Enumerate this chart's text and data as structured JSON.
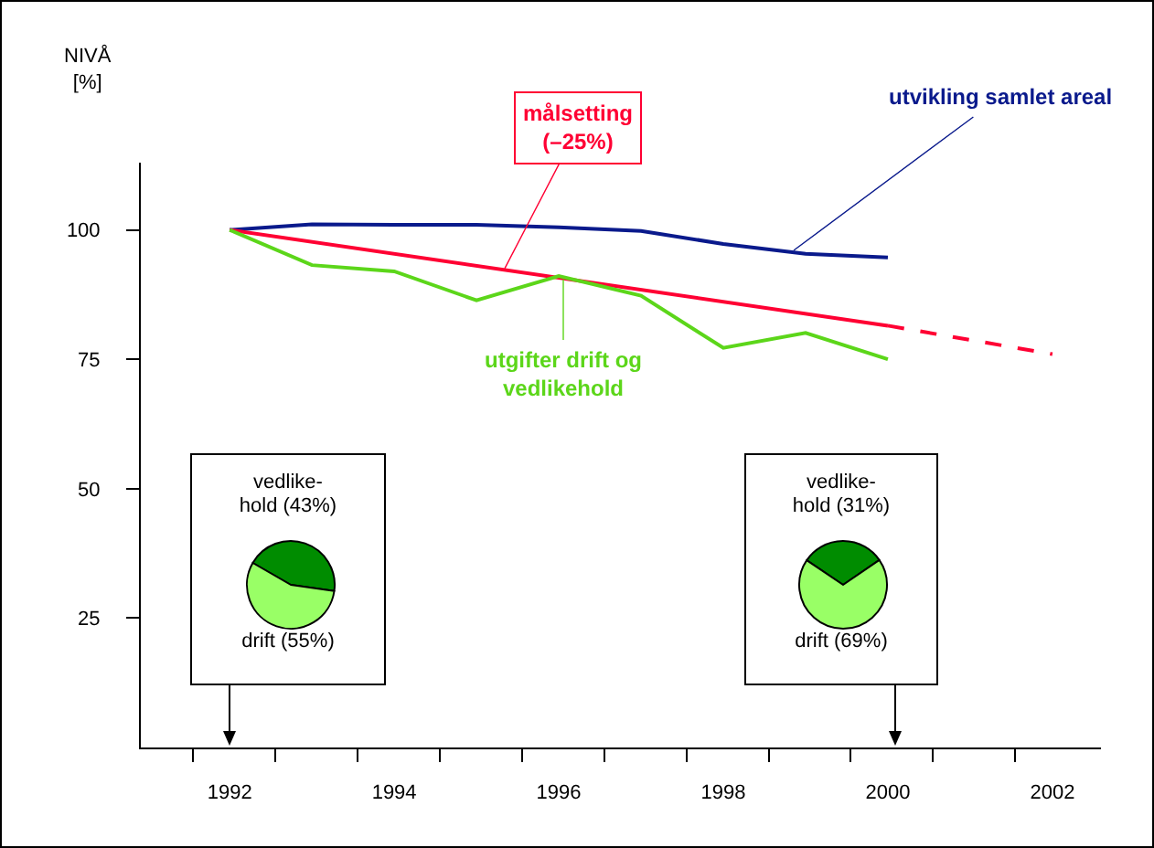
{
  "chart_data": [
    {
      "type": "line",
      "ylabel": "NIVÅ\n[%]",
      "x": [
        1992,
        1993,
        1994,
        1995,
        1996,
        1997,
        1998,
        1999,
        2000
      ],
      "xlim": [
        1990.92,
        2002.59
      ],
      "xticks": [
        {
          "value": 1991.55,
          "label": null
        },
        {
          "value": 1992.55,
          "label": null
        },
        {
          "value": 1993.55,
          "label": null
        },
        {
          "value": 1994.55,
          "label": null
        },
        {
          "value": 1995.55,
          "label": null
        },
        {
          "value": 1996.55,
          "label": null
        },
        {
          "value": 1997.55,
          "label": null
        },
        {
          "value": 1998.55,
          "label": null
        },
        {
          "value": 1999.55,
          "label": null
        },
        {
          "value": 2000.55,
          "label": null
        },
        {
          "value": 2001.55,
          "label": null
        },
        1992,
        1994,
        1996,
        1998,
        2000,
        2002
      ],
      "ylim": [
        0,
        113
      ],
      "yticks": [
        25,
        50,
        75,
        100
      ],
      "grid": false,
      "legend": false,
      "marker": "none",
      "series": [
        {
          "name": "utvikling samlet areal",
          "color": "#0a1a8c",
          "values": [
            100,
            101.1,
            101,
            101,
            100.5,
            99.8,
            97.3,
            95.4,
            94.7
          ]
        },
        {
          "name": "målsetting\n(–25%)",
          "color": "#ff0033",
          "x": [
            1992,
            2000
          ],
          "values": [
            100,
            81.5
          ]
        },
        {
          "color": "#ff0033",
          "x": [
            2000,
            2002
          ],
          "values": [
            81.5,
            76
          ],
          "line_style": "dashed"
        },
        {
          "name": "utgifter drift og\nvedlikehold",
          "color": "#5cd61a",
          "values": [
            100,
            93.2,
            92,
            86.4,
            91.1,
            87.3,
            77.2,
            80.1,
            75
          ]
        }
      ]
    },
    {
      "type": "pie",
      "categories": [
        "vedlike-\nhold",
        "drift"
      ],
      "values": [
        43,
        55
      ],
      "value_labels": [
        "(43%)",
        "(55%)"
      ],
      "colors": [
        "#008c00",
        "#99ff66"
      ]
    },
    {
      "type": "pie",
      "categories": [
        "vedlike-\nhold",
        "drift"
      ],
      "values": [
        31,
        69
      ],
      "value_labels": [
        "(31%)",
        "(69%)"
      ],
      "colors": [
        "#008c00",
        "#99ff66"
      ]
    }
  ]
}
